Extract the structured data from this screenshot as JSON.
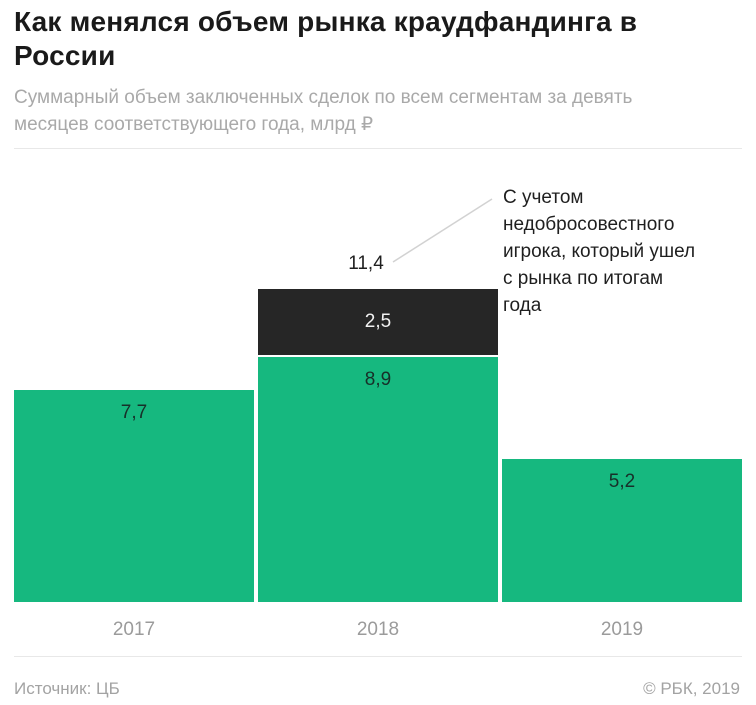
{
  "header": {
    "title": "Как менялся объем рынка краудфандинга в России",
    "subtitle": "Суммарный объем заключенных сделок по всем сегментам за девять\nмесяцев соответствующего года, млрд ₽"
  },
  "chart_data": {
    "type": "bar",
    "stacked": true,
    "title": "Как менялся объем рынка краудфандинга в России",
    "subtitle": "Суммарный объем заключенных сделок по всем сегментам за девять месяцев соответствующего года, млрд ₽",
    "unit": "млрд ₽",
    "categories": [
      "2017",
      "2018",
      "2019"
    ],
    "series": [
      {
        "name": "Объем сделок за девять месяцев",
        "color": "#16b87f",
        "values": [
          7.7,
          8.9,
          5.2
        ],
        "labels": [
          "7,7",
          "8,9",
          "5,2"
        ]
      },
      {
        "name": "Недобросовестный игрок",
        "color": "#262626",
        "values": [
          0,
          2.5,
          0
        ],
        "labels": [
          "",
          "2,5",
          ""
        ]
      }
    ],
    "total_label": {
      "category": "2018",
      "value": 11.4,
      "text": "11,4"
    },
    "annotation": {
      "text": "С учетом\nнедобросовестного\nигрока, который ушел\nс рынка по итогам\nгода",
      "target": "сегмент 2,5 (2018)"
    },
    "ylim": [
      0,
      12
    ],
    "grid": false,
    "legend": false,
    "value_label_color_on_green": "#173029",
    "value_label_color_on_dark": "#f2f2f2",
    "axis_label_color": "#9b9b9b"
  },
  "footer": {
    "source": "Источник: ЦБ",
    "copyright": "© РБК, 2019"
  },
  "colors": {
    "green": "#16b87f",
    "dark": "#262626",
    "title": "#1a1a1a",
    "muted": "#a9a9a9",
    "divider": "#e8e8e8",
    "leader_line": "#d2d2d2"
  }
}
